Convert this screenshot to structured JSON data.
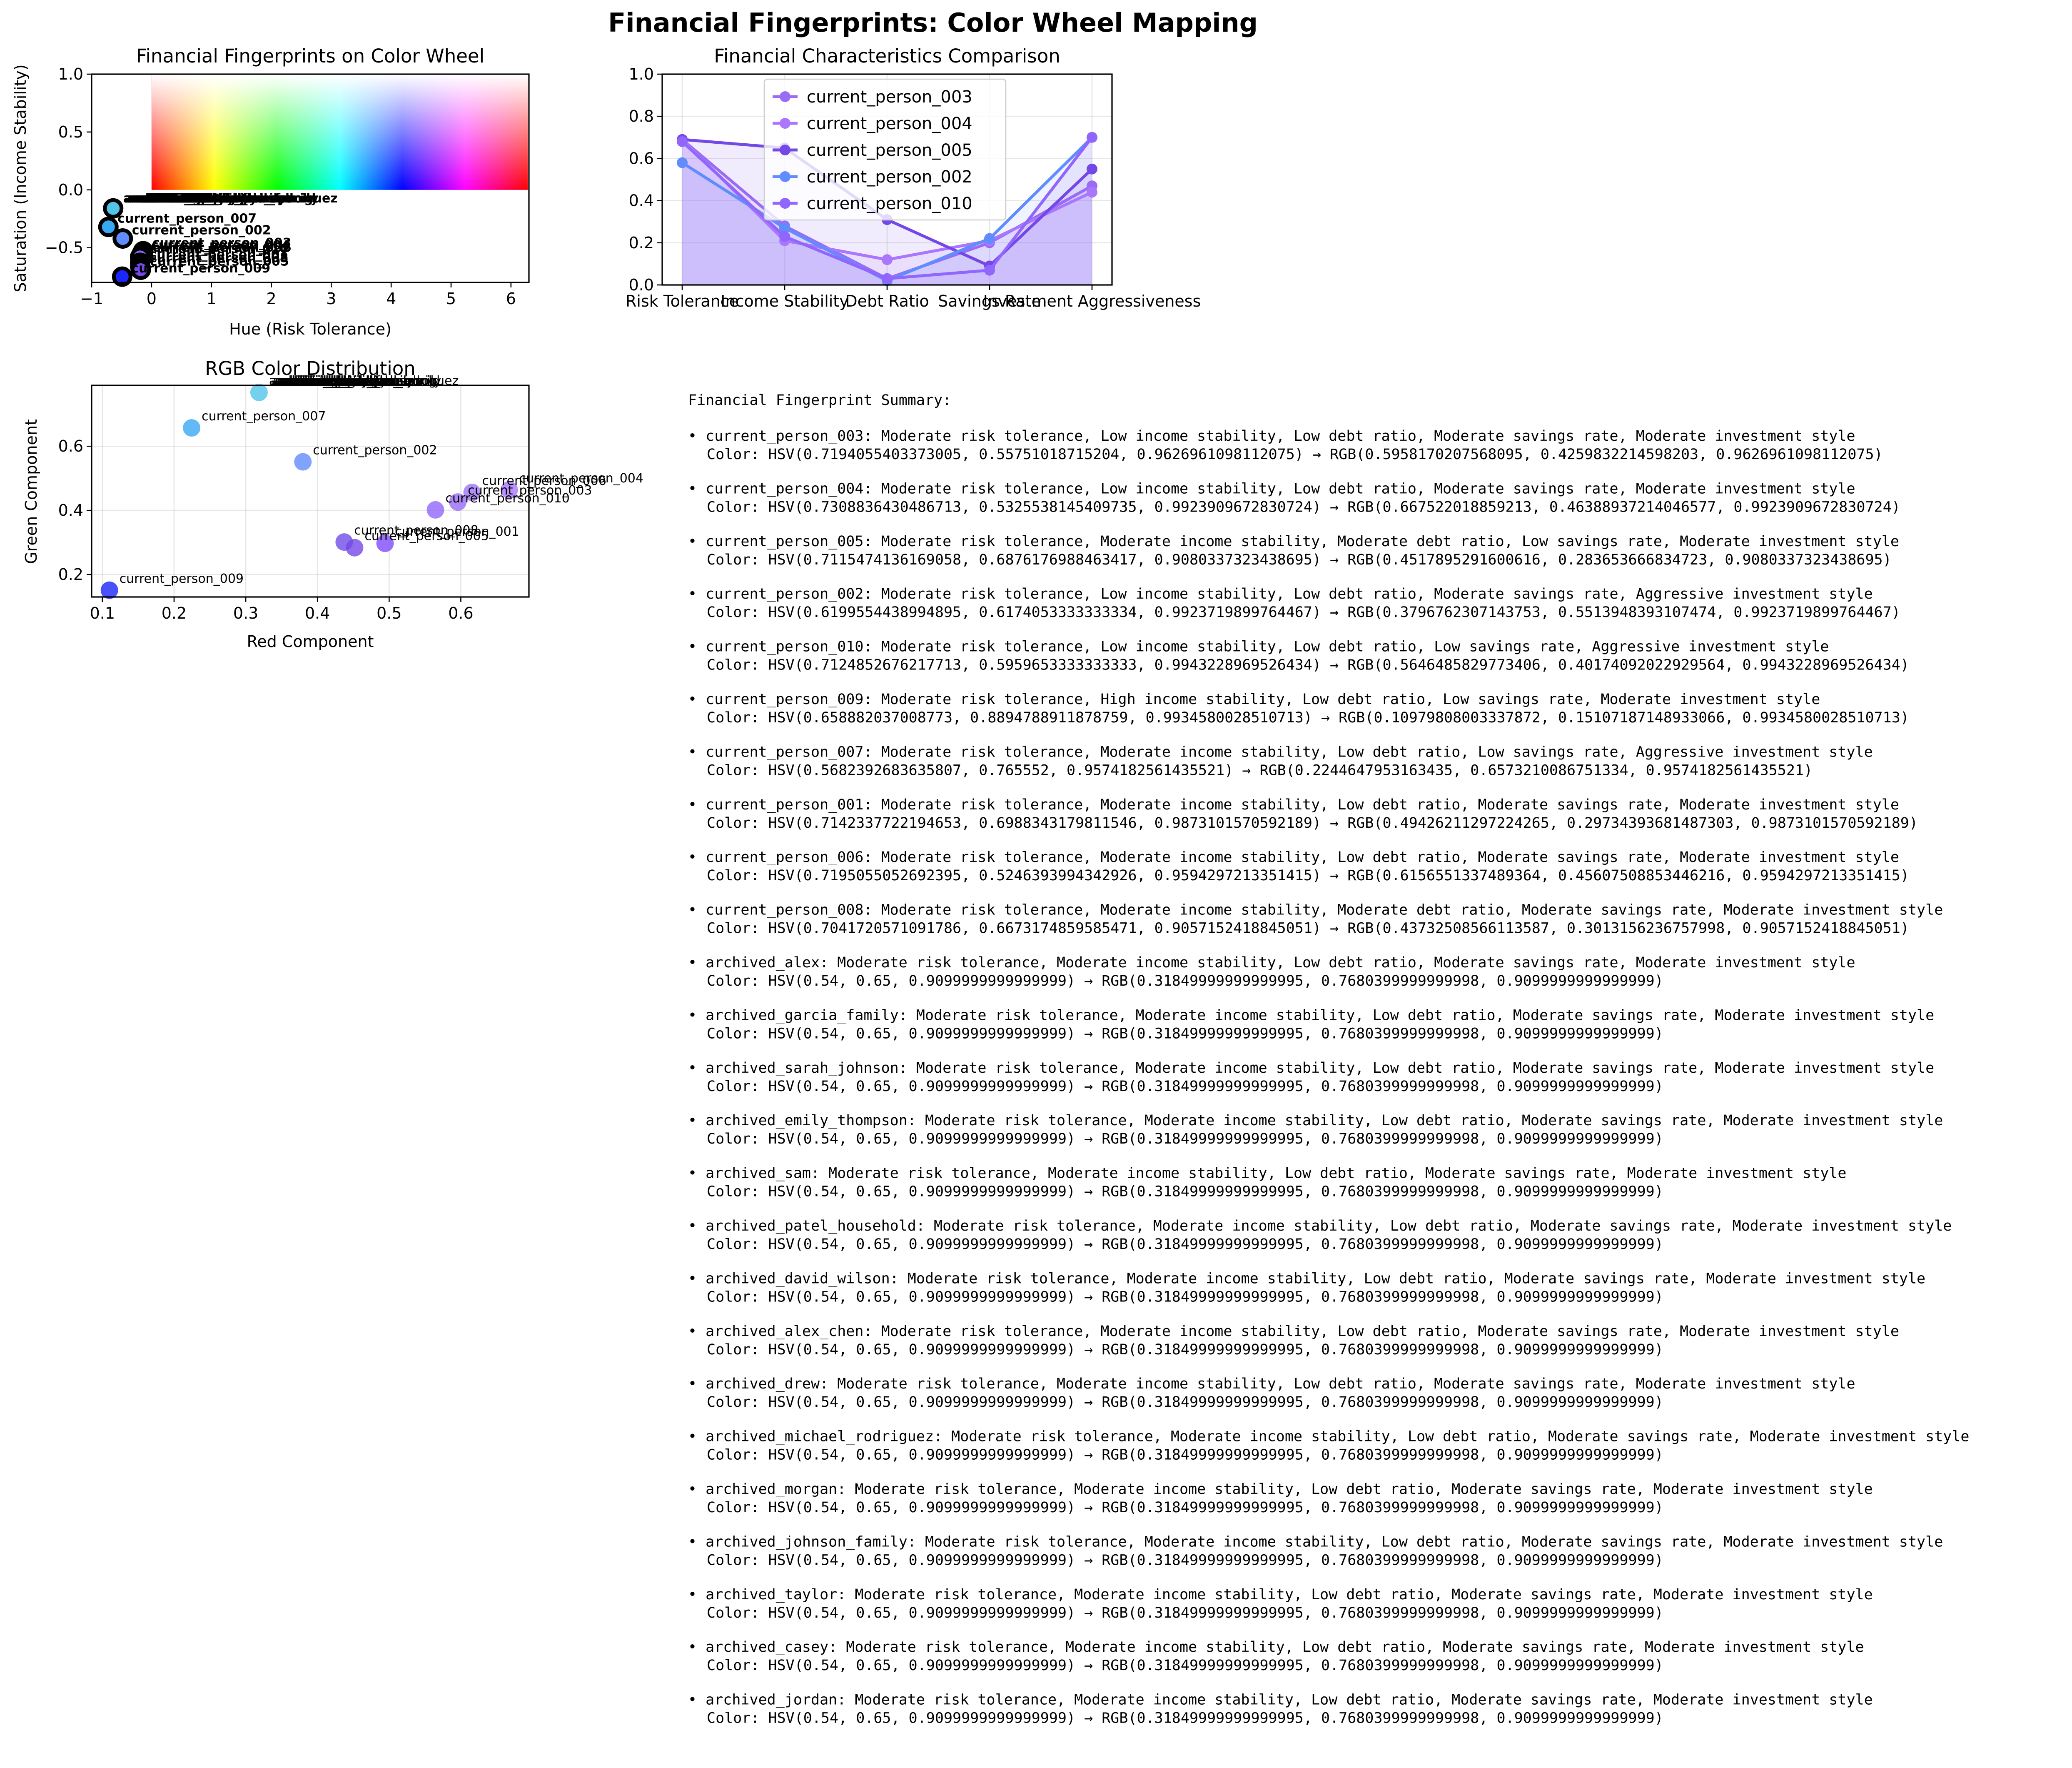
{
  "figure_title": "Financial Fingerprints: Color Wheel Mapping",
  "summary_title": "Financial Fingerprint Summary:",
  "summary": [
    {
      "line1": "• current_person_003: Moderate risk tolerance, Low income stability, Low debt ratio, Moderate savings rate, Moderate investment style",
      "line2": "Color: HSV(0.7194055403373005, 0.55751018715204, 0.9626961098112075) → RGB(0.5958170207568095, 0.4259832214598203, 0.9626961098112075)"
    },
    {
      "line1": "• current_person_004: Moderate risk tolerance, Low income stability, Low debt ratio, Moderate savings rate, Moderate investment style",
      "line2": "Color: HSV(0.7308836430486713, 0.5325538145409735, 0.9923909672830724) → RGB(0.667522018859213, 0.46388937214046577, 0.9923909672830724)"
    },
    {
      "line1": "• current_person_005: Moderate risk tolerance, Moderate income stability, Moderate debt ratio, Low savings rate, Moderate investment style",
      "line2": "Color: HSV(0.7115474136169058, 0.6876176988463417, 0.9080337323438695) → RGB(0.4517895291600616, 0.283653666834723, 0.9080337323438695)"
    },
    {
      "line1": "• current_person_002: Moderate risk tolerance, Low income stability, Low debt ratio, Moderate savings rate, Aggressive investment style",
      "line2": "Color: HSV(0.6199554438994895, 0.6174053333333334, 0.9923719899764467) → RGB(0.3796762307143753, 0.5513948393107474, 0.9923719899764467)"
    },
    {
      "line1": "• current_person_010: Moderate risk tolerance, Low income stability, Low debt ratio, Low savings rate, Aggressive investment style",
      "line2": "Color: HSV(0.7124852676217713, 0.5959653333333333, 0.9943228969526434) → RGB(0.5646485829773406, 0.40174092022929564, 0.9943228969526434)"
    },
    {
      "line1": "• current_person_009: Moderate risk tolerance, High income stability, Low debt ratio, Low savings rate, Moderate investment style",
      "line2": "Color: HSV(0.658882037008773, 0.8894788911878759, 0.9934580028510713) → RGB(0.10979808003337872, 0.15107187148933066, 0.9934580028510713)"
    },
    {
      "line1": "• current_person_007: Moderate risk tolerance, Moderate income stability, Low debt ratio, Low savings rate, Aggressive investment style",
      "line2": "Color: HSV(0.5682392683635807, 0.765552, 0.9574182561435521) → RGB(0.2244647953163435, 0.6573210086751334, 0.9574182561435521)"
    },
    {
      "line1": "• current_person_001: Moderate risk tolerance, Moderate income stability, Low debt ratio, Moderate savings rate, Moderate investment style",
      "line2": "Color: HSV(0.7142337722194653, 0.6988343179811546, 0.9873101570592189) → RGB(0.49426211297224265, 0.29734393681487303, 0.9873101570592189)"
    },
    {
      "line1": "• current_person_006: Moderate risk tolerance, Moderate income stability, Low debt ratio, Moderate savings rate, Moderate investment style",
      "line2": "Color: HSV(0.7195055052692395, 0.5246393994342926, 0.9594297213351415) → RGB(0.6156551337489364, 0.45607508853446216, 0.9594297213351415)"
    },
    {
      "line1": "• current_person_008: Moderate risk tolerance, Moderate income stability, Moderate debt ratio, Moderate savings rate, Moderate investment style",
      "line2": "Color: HSV(0.7041720571091786, 0.6673174859585471, 0.9057152418845051) → RGB(0.43732508566113587, 0.3013156236757998, 0.9057152418845051)"
    },
    {
      "line1": "• archived_alex: Moderate risk tolerance, Moderate income stability, Low debt ratio, Moderate savings rate, Moderate investment style",
      "line2": "Color: HSV(0.54, 0.65, 0.9099999999999999) → RGB(0.31849999999999995, 0.7680399999999998, 0.9099999999999999)"
    },
    {
      "line1": "• archived_garcia_family: Moderate risk tolerance, Moderate income stability, Low debt ratio, Moderate savings rate, Moderate investment style",
      "line2": "Color: HSV(0.54, 0.65, 0.9099999999999999) → RGB(0.31849999999999995, 0.7680399999999998, 0.9099999999999999)"
    },
    {
      "line1": "• archived_sarah_johnson: Moderate risk tolerance, Moderate income stability, Low debt ratio, Moderate savings rate, Moderate investment style",
      "line2": "Color: HSV(0.54, 0.65, 0.9099999999999999) → RGB(0.31849999999999995, 0.7680399999999998, 0.9099999999999999)"
    },
    {
      "line1": "• archived_emily_thompson: Moderate risk tolerance, Moderate income stability, Low debt ratio, Moderate savings rate, Moderate investment style",
      "line2": "Color: HSV(0.54, 0.65, 0.9099999999999999) → RGB(0.31849999999999995, 0.7680399999999998, 0.9099999999999999)"
    },
    {
      "line1": "• archived_sam: Moderate risk tolerance, Moderate income stability, Low debt ratio, Moderate savings rate, Moderate investment style",
      "line2": "Color: HSV(0.54, 0.65, 0.9099999999999999) → RGB(0.31849999999999995, 0.7680399999999998, 0.9099999999999999)"
    },
    {
      "line1": "• archived_patel_household: Moderate risk tolerance, Moderate income stability, Low debt ratio, Moderate savings rate, Moderate investment style",
      "line2": "Color: HSV(0.54, 0.65, 0.9099999999999999) → RGB(0.31849999999999995, 0.7680399999999998, 0.9099999999999999)"
    },
    {
      "line1": "• archived_david_wilson: Moderate risk tolerance, Moderate income stability, Low debt ratio, Moderate savings rate, Moderate investment style",
      "line2": "Color: HSV(0.54, 0.65, 0.9099999999999999) → RGB(0.31849999999999995, 0.7680399999999998, 0.9099999999999999)"
    },
    {
      "line1": "• archived_alex_chen: Moderate risk tolerance, Moderate income stability, Low debt ratio, Moderate savings rate, Moderate investment style",
      "line2": "Color: HSV(0.54, 0.65, 0.9099999999999999) → RGB(0.31849999999999995, 0.7680399999999998, 0.9099999999999999)"
    },
    {
      "line1": "• archived_drew: Moderate risk tolerance, Moderate income stability, Low debt ratio, Moderate savings rate, Moderate investment style",
      "line2": "Color: HSV(0.54, 0.65, 0.9099999999999999) → RGB(0.31849999999999995, 0.7680399999999998, 0.9099999999999999)"
    },
    {
      "line1": "• archived_michael_rodriguez: Moderate risk tolerance, Moderate income stability, Low debt ratio, Moderate savings rate, Moderate investment style",
      "line2": "Color: HSV(0.54, 0.65, 0.9099999999999999) → RGB(0.31849999999999995, 0.7680399999999998, 0.9099999999999999)"
    },
    {
      "line1": "• archived_morgan: Moderate risk tolerance, Moderate income stability, Low debt ratio, Moderate savings rate, Moderate investment style",
      "line2": "Color: HSV(0.54, 0.65, 0.9099999999999999) → RGB(0.31849999999999995, 0.7680399999999998, 0.9099999999999999)"
    },
    {
      "line1": "• archived_johnson_family: Moderate risk tolerance, Moderate income stability, Low debt ratio, Moderate savings rate, Moderate investment style",
      "line2": "Color: HSV(0.54, 0.65, 0.9099999999999999) → RGB(0.31849999999999995, 0.7680399999999998, 0.9099999999999999)"
    },
    {
      "line1": "• archived_taylor: Moderate risk tolerance, Moderate income stability, Low debt ratio, Moderate savings rate, Moderate investment style",
      "line2": "Color: HSV(0.54, 0.65, 0.9099999999999999) → RGB(0.31849999999999995, 0.7680399999999998, 0.9099999999999999)"
    },
    {
      "line1": "• archived_casey: Moderate risk tolerance, Moderate income stability, Low debt ratio, Moderate savings rate, Moderate investment style",
      "line2": "Color: HSV(0.54, 0.65, 0.9099999999999999) → RGB(0.31849999999999995, 0.7680399999999998, 0.9099999999999999)"
    },
    {
      "line1": "• archived_jordan: Moderate risk tolerance, Moderate income stability, Low debt ratio, Moderate savings rate, Moderate investment style",
      "line2": "Color: HSV(0.54, 0.65, 0.9099999999999999) → RGB(0.31849999999999995, 0.7680399999999998, 0.9099999999999999)"
    }
  ],
  "chart_data": [
    {
      "type": "scatter",
      "title": "Financial Fingerprints on Color Wheel",
      "xlabel": "Hue (Risk Tolerance)",
      "ylabel": "Saturation (Income Stability)",
      "xlim": [
        -1,
        6.3
      ],
      "ylim": [
        -0.8,
        1.0
      ],
      "xticks": [
        -1,
        0,
        1,
        2,
        3,
        4,
        5,
        6
      ],
      "yticks": [
        -0.5,
        0.0,
        0.5,
        1.0
      ],
      "background": "hue-saturation color wheel strip, hue 0 to 6.28 along x, saturation 0 to 1 along y",
      "grid": false,
      "points": [
        {
          "label": "archived_alex",
          "x": -0.64,
          "y": -0.16,
          "color": "#51c4e8"
        },
        {
          "label": "current_person_007",
          "x": -0.72,
          "y": -0.32,
          "color": "#39a8f4"
        },
        {
          "label": "current_person_002",
          "x": -0.48,
          "y": -0.42,
          "color": "#618cfd"
        },
        {
          "label": "current_person_003",
          "x": -0.14,
          "y": -0.53,
          "color": "#986cf5"
        },
        {
          "label": "current_person_004",
          "x": -0.16,
          "y": -0.55,
          "color": "#aa76fd"
        },
        {
          "label": "current_person_006",
          "x": -0.14,
          "y": -0.57,
          "color": "#9d74f5"
        },
        {
          "label": "current_person_010",
          "x": -0.19,
          "y": -0.58,
          "color": "#9066fd"
        },
        {
          "label": "current_person_001",
          "x": -0.19,
          "y": -0.63,
          "color": "#7e4cfc"
        },
        {
          "label": "current_person_008",
          "x": -0.19,
          "y": -0.66,
          "color": "#6f4ce7"
        },
        {
          "label": "current_person_005",
          "x": -0.18,
          "y": -0.69,
          "color": "#7348e7"
        },
        {
          "label": "current_person_009",
          "x": -0.49,
          "y": -0.75,
          "color": "#1c26fd"
        }
      ],
      "point_labels": [
        "archived_alex",
        "archived_garcia_family",
        "archived_sarah_johnson",
        "archived_emily_thompson",
        "archived_sam",
        "archived_patel_household",
        "archived_david_wilson",
        "archived_alex_chen",
        "archived_drew",
        "archived_michael_rodriguez",
        "archived_morgan",
        "archived_johnson_family",
        "archived_taylor",
        "archived_casey",
        "archived_jordan",
        "current_person_007",
        "current_person_002",
        "current_person_003",
        "current_person_004",
        "current_person_006",
        "current_person_010",
        "current_person_001",
        "current_person_008",
        "current_person_005",
        "current_person_009"
      ]
    },
    {
      "type": "line",
      "title": "Financial Characteristics Comparison",
      "categories": [
        "Risk Tolerance",
        "Income Stability",
        "Debt Ratio",
        "Savings Rate",
        "Investment Aggressiveness"
      ],
      "ylim": [
        0,
        1.0
      ],
      "yticks": [
        0.0,
        0.2,
        0.4,
        0.6,
        0.8,
        1.0
      ],
      "grid": true,
      "legend": "top-left",
      "series": [
        {
          "name": "current_person_003",
          "color": "#9a6cf6",
          "values": [
            0.69,
            0.28,
            0.03,
            0.2,
            0.47
          ]
        },
        {
          "name": "current_person_004",
          "color": "#aa76fd",
          "values": [
            0.69,
            0.21,
            0.12,
            0.21,
            0.44
          ]
        },
        {
          "name": "current_person_005",
          "color": "#7348e7",
          "values": [
            0.69,
            0.65,
            0.31,
            0.09,
            0.55
          ]
        },
        {
          "name": "current_person_002",
          "color": "#618cfd",
          "values": [
            0.58,
            0.27,
            0.02,
            0.22,
            0.7
          ]
        },
        {
          "name": "current_person_010",
          "color": "#9066fd",
          "values": [
            0.68,
            0.23,
            0.03,
            0.07,
            0.7
          ]
        }
      ]
    },
    {
      "type": "scatter",
      "title": "RGB Color Distribution",
      "xlabel": "Red Component",
      "ylabel": "Green Component",
      "xlim": [
        0.085,
        0.695
      ],
      "ylim": [
        0.13,
        0.79
      ],
      "xticks": [
        0.1,
        0.2,
        0.3,
        0.4,
        0.5,
        0.6
      ],
      "yticks": [
        0.2,
        0.4,
        0.6
      ],
      "grid": true,
      "points": [
        {
          "label": "archived_alex",
          "x": 0.3185,
          "y": 0.768,
          "color": "#51c4e8"
        },
        {
          "label": "current_person_007",
          "x": 0.2245,
          "y": 0.6573,
          "color": "#39a8f4"
        },
        {
          "label": "current_person_002",
          "x": 0.3797,
          "y": 0.5514,
          "color": "#618cfd"
        },
        {
          "label": "current_person_004",
          "x": 0.6675,
          "y": 0.4639,
          "color": "#aa76fd"
        },
        {
          "label": "current_person_006",
          "x": 0.6157,
          "y": 0.4561,
          "color": "#9d74f5"
        },
        {
          "label": "current_person_003",
          "x": 0.5958,
          "y": 0.426,
          "color": "#986cf5"
        },
        {
          "label": "current_person_010",
          "x": 0.5646,
          "y": 0.4017,
          "color": "#9066fd"
        },
        {
          "label": "current_person_001",
          "x": 0.4943,
          "y": 0.2973,
          "color": "#7e4cfc"
        },
        {
          "label": "current_person_008",
          "x": 0.4373,
          "y": 0.3013,
          "color": "#6f4ce7"
        },
        {
          "label": "current_person_005",
          "x": 0.4518,
          "y": 0.2837,
          "color": "#7348e7"
        },
        {
          "label": "current_person_009",
          "x": 0.1098,
          "y": 0.1511,
          "color": "#1c26fd"
        }
      ],
      "overlapping_labels": [
        "archived_garcia_family",
        "archived_sarah_johnson",
        "archived_emily_thompson",
        "archived_sam",
        "archived_patel_household",
        "archived_david_wilson",
        "archived_alex_chen",
        "archived_drew",
        "archived_michael_rodriguez",
        "archived_morgan",
        "archived_johnson_family",
        "archived_taylor",
        "archived_casey",
        "archived_jordan"
      ]
    }
  ]
}
